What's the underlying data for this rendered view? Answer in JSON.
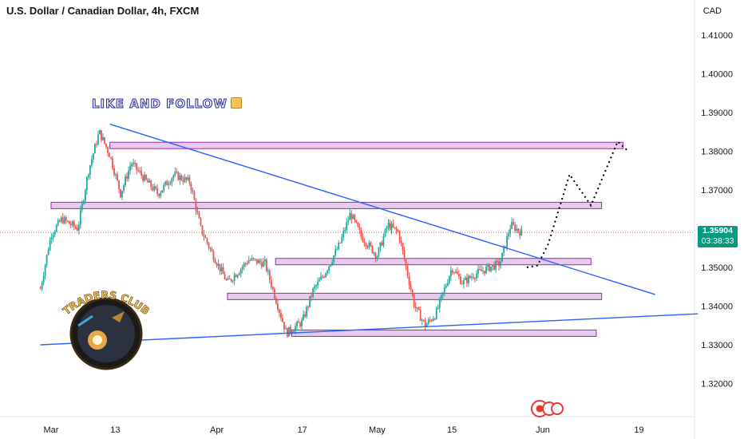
{
  "header": {
    "title": "U.S. Dollar / Canadian Dollar, 4h, FXCM",
    "currency": "CAD"
  },
  "annotation": {
    "like_text": "LIKE AND FOLLOW"
  },
  "logo": {
    "text": "TRADERS CLUB"
  },
  "price_tag": {
    "price": "1.35904",
    "countdown": "03:38:33",
    "color": "#089981"
  },
  "chart_data": {
    "type": "candlestick",
    "symbol": "USDCAD",
    "timeframe": "4h",
    "y_axis": {
      "ticks": [
        1.41,
        1.4,
        1.39,
        1.38,
        1.37,
        1.36,
        1.35,
        1.34,
        1.33,
        1.32
      ],
      "tick_labels": [
        "1.41000",
        "1.40000",
        "1.39000",
        "1.38000",
        "1.37000",
        "1.36000",
        "1.35000",
        "1.34000",
        "1.33000",
        "1.32000"
      ]
    },
    "x_axis": {
      "ticks": [
        "Mar",
        "13",
        "Apr",
        "17",
        "May",
        "15",
        "Jun",
        "19"
      ]
    },
    "current_price": 1.35904,
    "colors": {
      "up": "#26a69a",
      "down": "#ef5350",
      "trendline": "#2962ff",
      "zone_fill": "#e1bee7",
      "zone_border": "#9c27b0"
    },
    "price_path": [
      {
        "x": "Feb 27",
        "y": 1.3445
      },
      {
        "x": "Mar 1",
        "y": 1.3585
      },
      {
        "x": "Mar 3",
        "y": 1.3625
      },
      {
        "x": "Mar 6",
        "y": 1.36
      },
      {
        "x": "Mar 8",
        "y": 1.375
      },
      {
        "x": "Mar 10",
        "y": 1.385
      },
      {
        "x": "Mar 12",
        "y": 1.379
      },
      {
        "x": "Mar 14",
        "y": 1.369
      },
      {
        "x": "Mar 16",
        "y": 1.377
      },
      {
        "x": "Mar 19",
        "y": 1.372
      },
      {
        "x": "Mar 21",
        "y": 1.369
      },
      {
        "x": "Mar 24",
        "y": 1.374
      },
      {
        "x": "Mar 27",
        "y": 1.372
      },
      {
        "x": "Mar 29",
        "y": 1.36
      },
      {
        "x": "Mar 31",
        "y": 1.354
      },
      {
        "x": "Apr 3",
        "y": 1.346
      },
      {
        "x": "Apr 5",
        "y": 1.349
      },
      {
        "x": "Apr 7",
        "y": 1.352
      },
      {
        "x": "Apr 10",
        "y": 1.351
      },
      {
        "x": "Apr 12",
        "y": 1.342
      },
      {
        "x": "Apr 14",
        "y": 1.333
      },
      {
        "x": "Apr 17",
        "y": 1.336
      },
      {
        "x": "Apr 19",
        "y": 1.344
      },
      {
        "x": "Apr 21",
        "y": 1.348
      },
      {
        "x": "Apr 24",
        "y": 1.356
      },
      {
        "x": "Apr 26",
        "y": 1.364
      },
      {
        "x": "Apr 28",
        "y": 1.358
      },
      {
        "x": "May 1",
        "y": 1.353
      },
      {
        "x": "May 3",
        "y": 1.361
      },
      {
        "x": "May 5",
        "y": 1.359
      },
      {
        "x": "May 8",
        "y": 1.34
      },
      {
        "x": "May 10",
        "y": 1.335
      },
      {
        "x": "May 12",
        "y": 1.338
      },
      {
        "x": "May 15",
        "y": 1.35
      },
      {
        "x": "May 17",
        "y": 1.346
      },
      {
        "x": "May 19",
        "y": 1.348
      },
      {
        "x": "May 22",
        "y": 1.35
      },
      {
        "x": "May 24",
        "y": 1.351
      },
      {
        "x": "May 26",
        "y": 1.361
      },
      {
        "x": "May 28",
        "y": 1.359
      }
    ],
    "horizontal_zones": [
      {
        "name": "zone-1",
        "from": "Mar 12",
        "to": "Jun 16",
        "price": 1.3815
      },
      {
        "name": "zone-2",
        "from": "Mar 1",
        "to": "Jun 12",
        "price": 1.366
      },
      {
        "name": "zone-3",
        "from": "Apr 12",
        "to": "Jun 10",
        "price": 1.3515
      },
      {
        "name": "zone-4",
        "from": "Apr 3",
        "to": "Jun 12",
        "price": 1.3425
      },
      {
        "name": "zone-5",
        "from": "Apr 15",
        "to": "Jun 11",
        "price": 1.333
      }
    ],
    "trendlines": [
      {
        "name": "descending-trendline",
        "from": {
          "x": "Mar 12",
          "y": 1.387
        },
        "to": {
          "x": "Jun 22",
          "y": 1.343
        }
      },
      {
        "name": "ascending-trendline",
        "from": {
          "x": "Feb 27",
          "y": 1.33
        },
        "to": {
          "x": "Jun 30",
          "y": 1.338
        }
      }
    ],
    "projection": [
      {
        "x": "May 29",
        "y": 1.35
      },
      {
        "x": "May 31",
        "y": 1.3505
      },
      {
        "x": "Jun 2",
        "y": 1.356
      },
      {
        "x": "Jun 6",
        "y": 1.374
      },
      {
        "x": "Jun 10",
        "y": 1.366
      },
      {
        "x": "Jun 15",
        "y": 1.3825
      },
      {
        "x": "Jun 17",
        "y": 1.38
      }
    ]
  }
}
